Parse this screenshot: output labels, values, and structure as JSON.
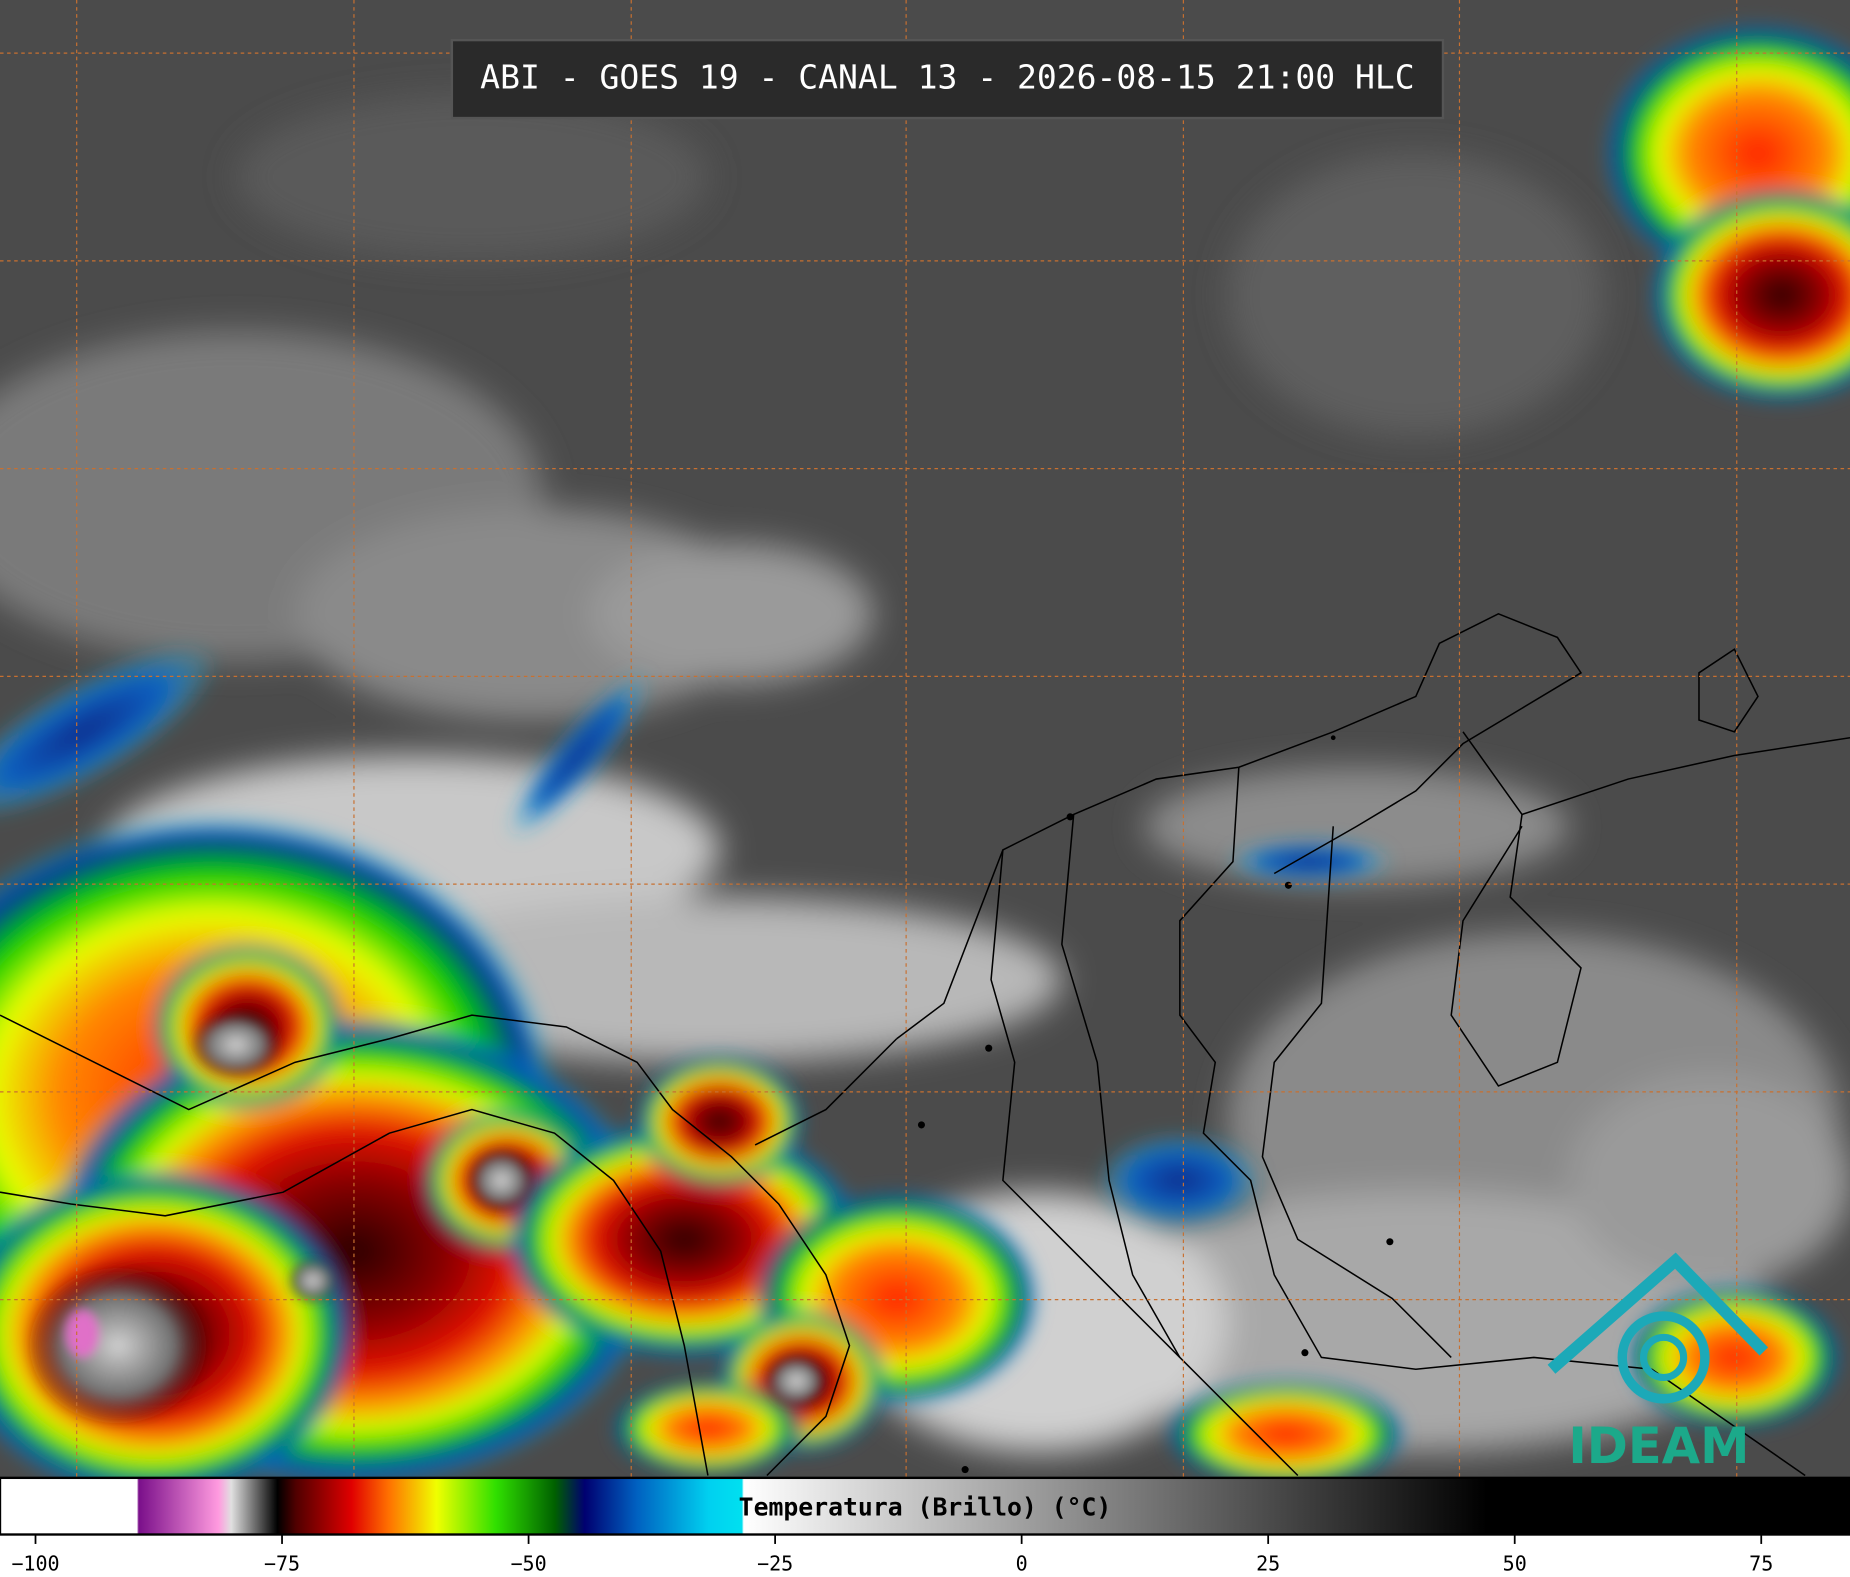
{
  "header": {
    "title": "ABI - GOES 19 - CANAL 13 - 2026-08-15 21:00 HLC"
  },
  "colorbar": {
    "label": "Temperatura (Brillo) (°C)",
    "xlim": [
      -103.6,
      84
    ],
    "xticks": [
      {
        "value": -100,
        "label": "−100"
      },
      {
        "value": -75,
        "label": "−75"
      },
      {
        "value": -50,
        "label": "−50"
      },
      {
        "value": -25,
        "label": "−25"
      },
      0,
      25,
      50,
      75
    ]
  },
  "logo": {
    "text": "IDEAM"
  }
}
